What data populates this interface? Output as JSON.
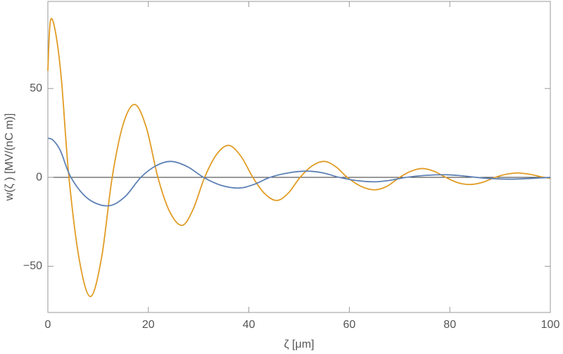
{
  "chart_data": {
    "type": "line",
    "xlabel": "ζ [μm]",
    "ylabel": "w(ζ ) [MV/(nC m)]",
    "xlim": [
      0,
      100
    ],
    "ylim": [
      -76,
      99
    ],
    "xticks": [
      0,
      20,
      40,
      60,
      80,
      100
    ],
    "yticks": [
      {
        "value": -50,
        "label": "−50"
      },
      0,
      50
    ],
    "series": [
      {
        "color": "#e19c24",
        "x": [
          0,
          0.5,
          1.5,
          2.7,
          4.2,
          6.3,
          8.5,
          10.7,
          12.8,
          15,
          17.3,
          19.6,
          21.9,
          24.2,
          26.7,
          28.9,
          31.2,
          33.6,
          36,
          38.4,
          40.8,
          43.1,
          45.5,
          47.8,
          50.2,
          52.6,
          55,
          57.3,
          59.6,
          62.3,
          65,
          67.5,
          70,
          72.3,
          74.5,
          76.8,
          79.2,
          81.6,
          84,
          86.5,
          89,
          91.3,
          93.5,
          95.8,
          98.2,
          100
        ],
        "values": [
          60,
          88,
          82,
          55,
          0,
          -47,
          -67,
          -45,
          0,
          30,
          41,
          28,
          0,
          -19,
          -27,
          -18,
          0,
          13,
          18,
          12,
          0,
          -9,
          -13,
          -9,
          0,
          6.5,
          9,
          6,
          0,
          -5,
          -7,
          -5,
          0,
          3.5,
          5,
          3.5,
          0,
          -3,
          -4,
          -2.8,
          0,
          1.8,
          2.5,
          1.8,
          0.3,
          -0.5
        ]
      },
      {
        "color": "#5e81b5",
        "x": [
          0,
          1,
          2.5,
          4.6,
          8,
          12,
          15.3,
          18.5,
          21.5,
          24.5,
          27.8,
          31,
          34.5,
          38,
          41,
          44.2,
          47.8,
          51.5,
          54.8,
          58,
          61.5,
          65,
          68,
          71.3,
          75,
          79,
          82,
          85.3,
          88.6,
          92,
          96,
          100
        ],
        "values": [
          22,
          21,
          15,
          0,
          -12,
          -16,
          -11,
          0,
          6.5,
          9,
          6,
          0,
          -4.5,
          -6,
          -4,
          0,
          2.5,
          3.5,
          2.5,
          0,
          -1.8,
          -2.5,
          -1.7,
          0,
          1.1,
          1.5,
          1,
          0,
          -0.7,
          -1,
          -0.6,
          0
        ]
      }
    ]
  }
}
